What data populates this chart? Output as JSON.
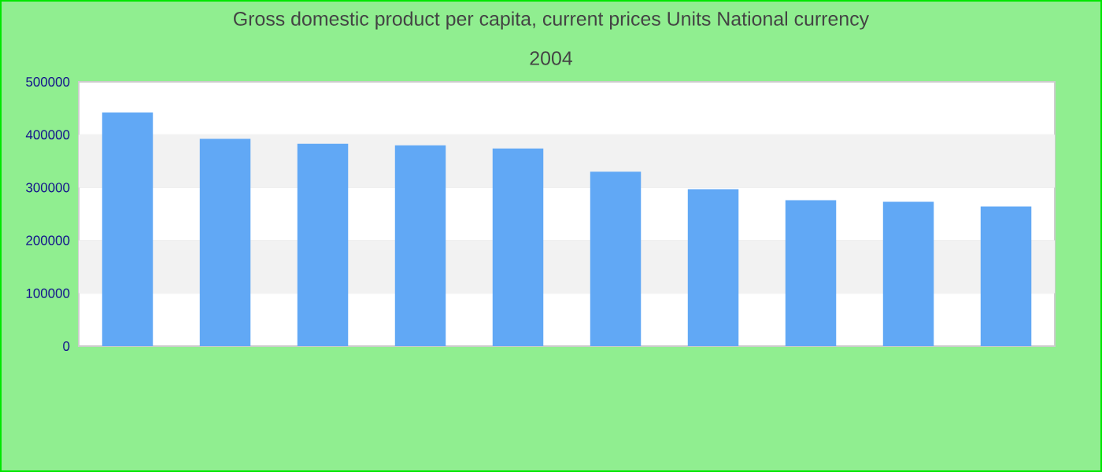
{
  "chart_data": {
    "type": "bar",
    "title": "Gross domestic product per capita, current prices Units National currency",
    "subtitle": "2004",
    "categories": [
      null,
      null,
      null,
      null,
      null,
      null,
      null,
      null,
      null,
      null
    ],
    "values": [
      442000,
      392000,
      383000,
      380000,
      374000,
      330000,
      297000,
      276000,
      273000,
      264000
    ],
    "color": "#61a8f5",
    "ylim": [
      0,
      500000
    ],
    "yticks": [
      0,
      100000,
      200000,
      300000,
      400000,
      500000
    ],
    "grid": true
  }
}
